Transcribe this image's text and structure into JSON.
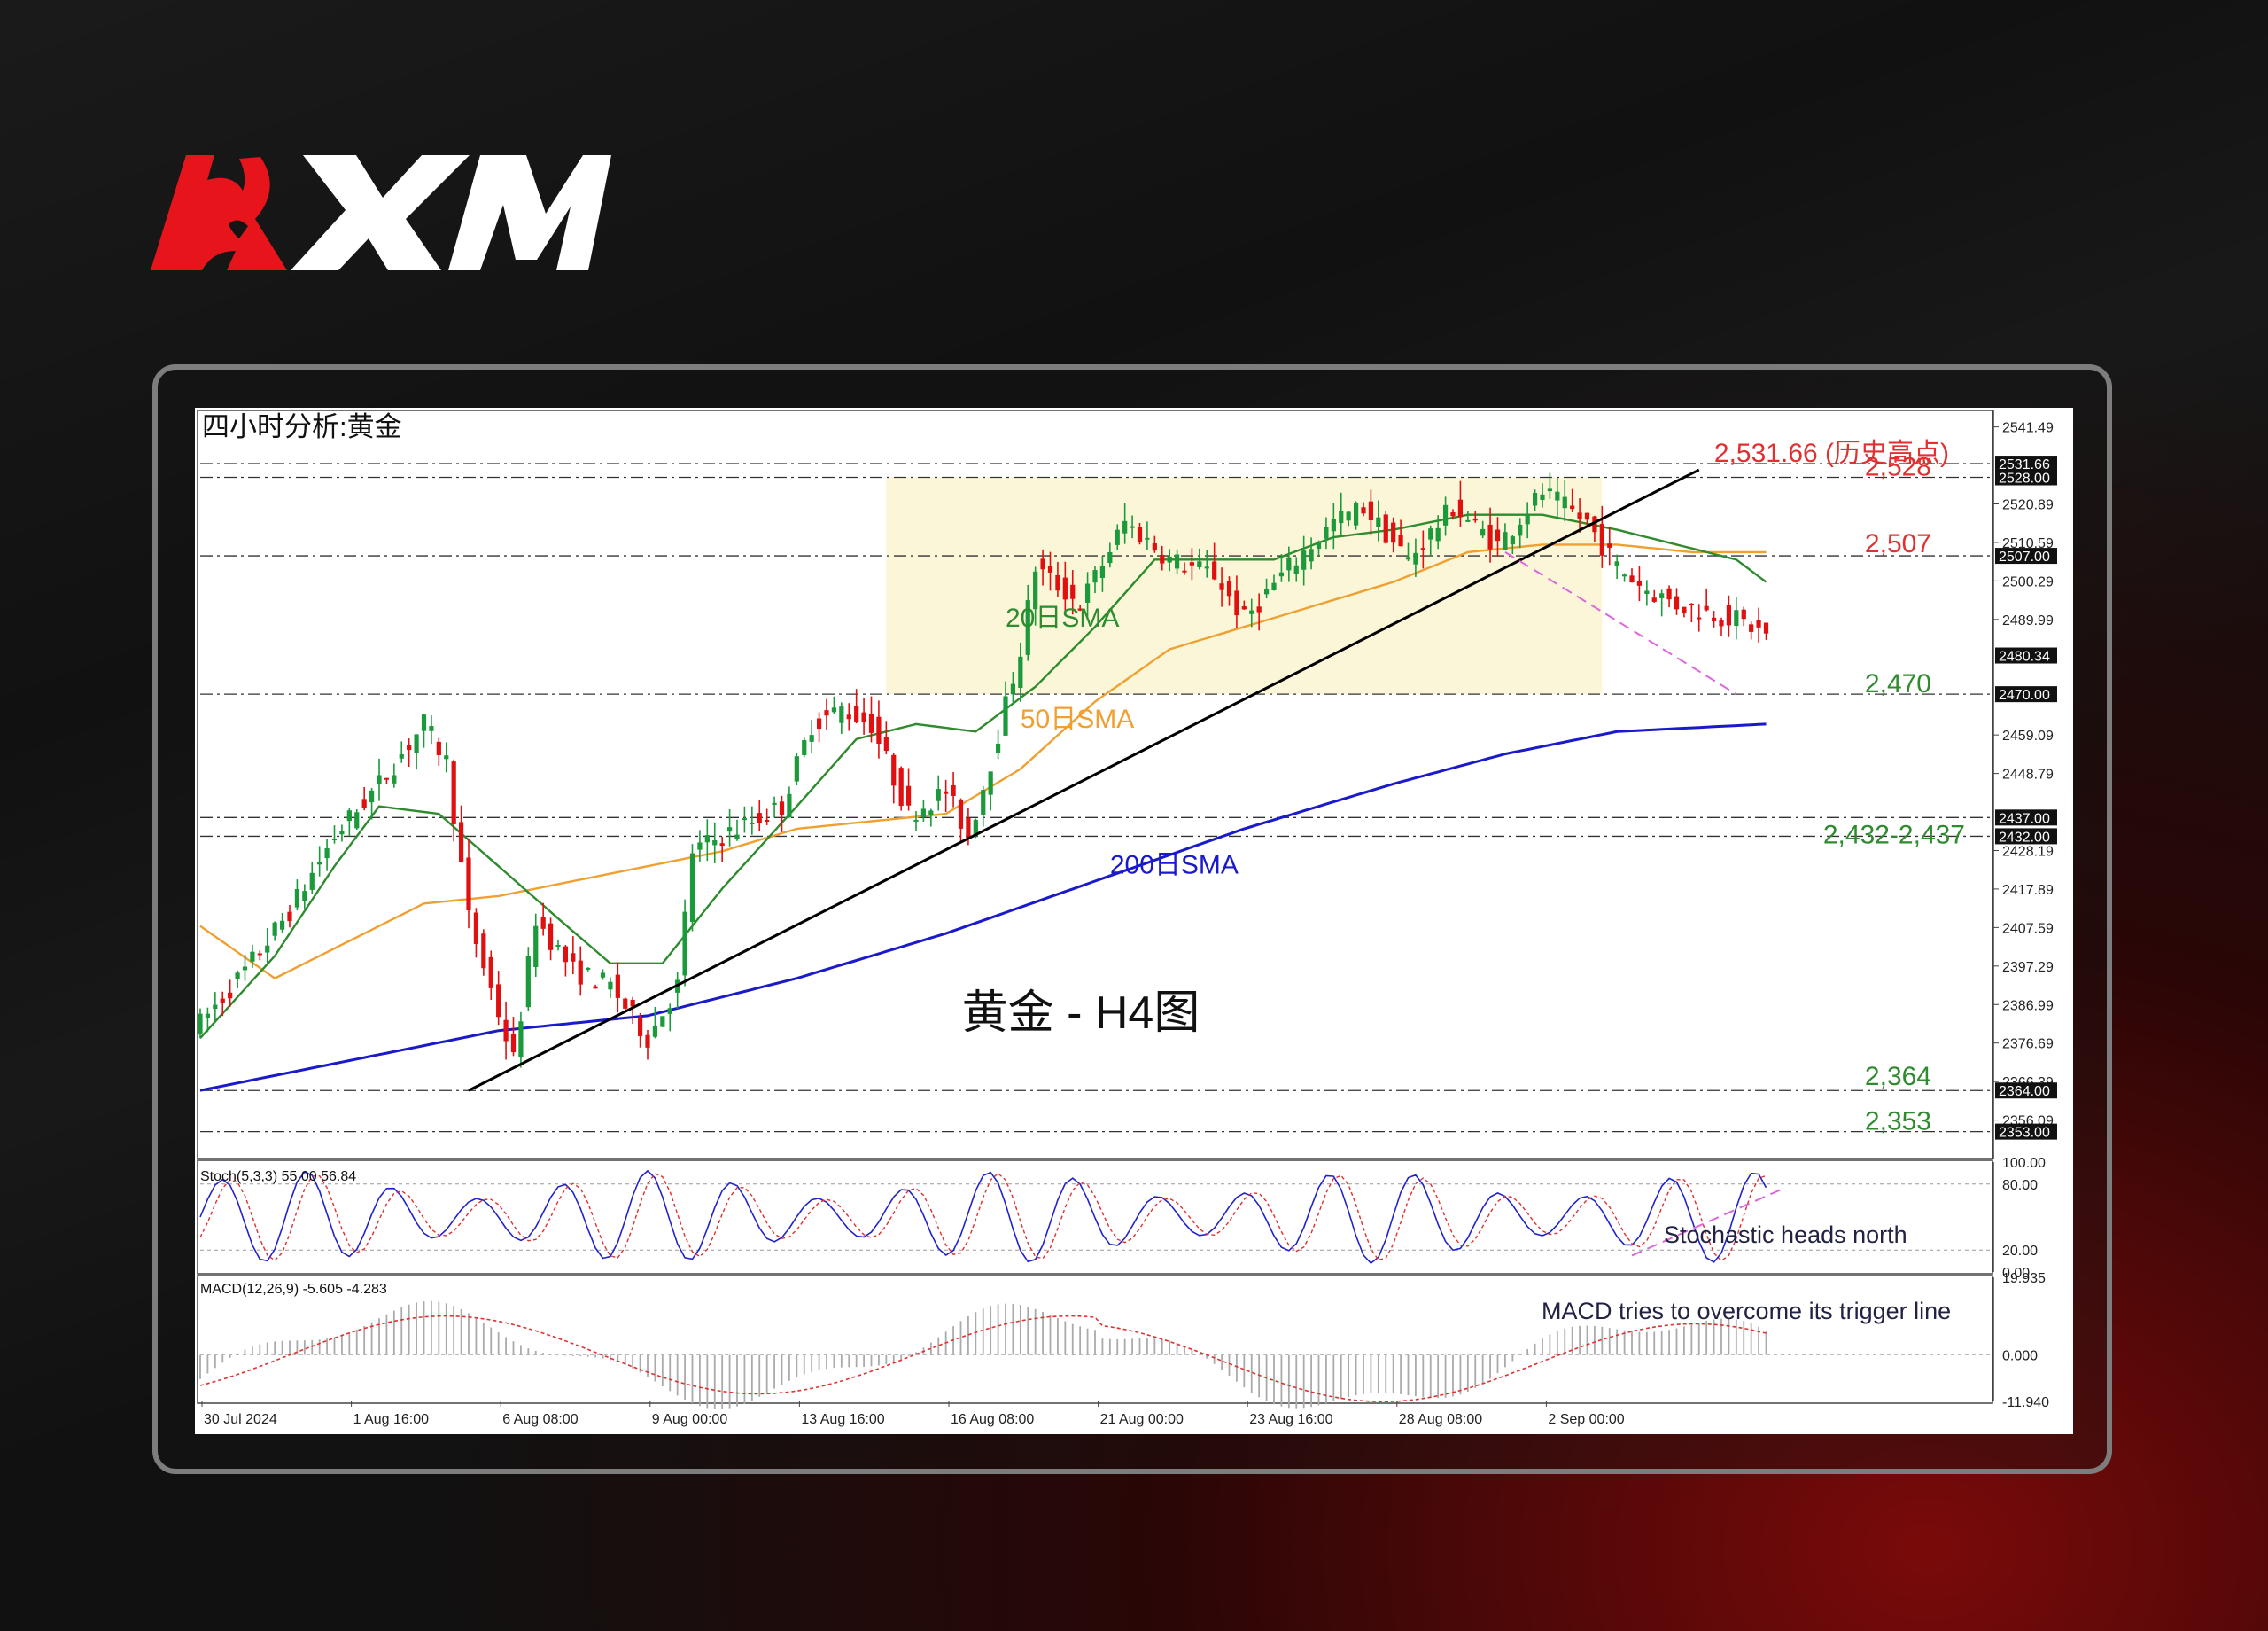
{
  "brand": {
    "name": "XM",
    "accent": "#e8141b"
  },
  "chart_data": {
    "type": "candlestick",
    "title": "四小时分析:黄金",
    "watermark": "黄金 - H4图",
    "ylim": [
      2345.8,
      2545.9
    ],
    "x_tick_labels": [
      "30 Jul 2024",
      "1 Aug 16:00",
      "6 Aug 08:00",
      "9 Aug 00:00",
      "13 Aug 16:00",
      "16 Aug 08:00",
      "21 Aug 00:00",
      "23 Aug 16:00",
      "28 Aug 08:00",
      "2 Sep 00:00"
    ],
    "y_tick_labels": [
      {
        "value": 2541.49,
        "label": "2541.49"
      },
      {
        "value": 2520.89,
        "label": "2520.89"
      },
      {
        "value": 2510.59,
        "label": "2510.59"
      },
      {
        "value": 2500.29,
        "label": "2500.29"
      },
      {
        "value": 2489.99,
        "label": "2489.99"
      },
      {
        "value": 2459.09,
        "label": "2459.09"
      },
      {
        "value": 2448.79,
        "label": "2448.79"
      },
      {
        "value": 2428.19,
        "label": "2428.19"
      },
      {
        "value": 2417.89,
        "label": "2417.89"
      },
      {
        "value": 2407.59,
        "label": "2407.59"
      },
      {
        "value": 2397.29,
        "label": "2397.29"
      },
      {
        "value": 2386.99,
        "label": "2386.99"
      },
      {
        "value": 2376.69,
        "label": "2376.69"
      },
      {
        "value": 2366.39,
        "label": "2366.39"
      },
      {
        "value": 2356.09,
        "label": "2356.09"
      }
    ],
    "price_boxes": [
      {
        "value": 2531.66,
        "label": "2531.66"
      },
      {
        "value": 2528.0,
        "label": "2528.00"
      },
      {
        "value": 2507.0,
        "label": "2507.00"
      },
      {
        "value": 2480.34,
        "label": "2480.34"
      },
      {
        "value": 2470.0,
        "label": "2470.00"
      },
      {
        "value": 2437.0,
        "label": "2437.00"
      },
      {
        "value": 2432.0,
        "label": "2432.00"
      },
      {
        "value": 2364.0,
        "label": "2364.00"
      },
      {
        "value": 2353.0,
        "label": "2353.00"
      }
    ],
    "levels": [
      {
        "value": 2531.66,
        "label": "2,531.66 (历史高点)",
        "color": "#e03030"
      },
      {
        "value": 2528,
        "label": "2,528",
        "color": "#e03030"
      },
      {
        "value": 2507,
        "label": "2,507",
        "color": "#e03030"
      },
      {
        "value": 2470,
        "label": "2,470",
        "color": "#2e8b2e"
      },
      {
        "value": 2437,
        "label": "",
        "color": "#2e8b2e"
      },
      {
        "value": 2432,
        "label": "2,432-2,437",
        "color": "#2e8b2e"
      },
      {
        "value": 2364,
        "label": "2,364",
        "color": "#2e8b2e"
      },
      {
        "value": 2353,
        "label": "2,353",
        "color": "#2e8b2e"
      }
    ],
    "range_box": {
      "x_from": 92,
      "x_to": 188,
      "y_from": 2470,
      "y_to": 2528
    },
    "series": [
      {
        "name": "20日SMA",
        "color": "#2e8b2e"
      },
      {
        "name": "50日SMA",
        "color": "#f0a030"
      },
      {
        "name": "200日SMA",
        "color": "#1a1acc"
      }
    ],
    "bull_color": "#1a9a3a",
    "bear_color": "#e01010",
    "anchors": [
      [
        0,
        2382
      ],
      [
        6,
        2396
      ],
      [
        12,
        2412
      ],
      [
        18,
        2432
      ],
      [
        24,
        2446
      ],
      [
        30,
        2462
      ],
      [
        33,
        2452
      ],
      [
        36,
        2410
      ],
      [
        42,
        2372
      ],
      [
        45,
        2410
      ],
      [
        50,
        2396
      ],
      [
        55,
        2392
      ],
      [
        60,
        2378
      ],
      [
        64,
        2392
      ],
      [
        66,
        2428
      ],
      [
        70,
        2432
      ],
      [
        74,
        2436
      ],
      [
        78,
        2440
      ],
      [
        82,
        2462
      ],
      [
        86,
        2466
      ],
      [
        90,
        2462
      ],
      [
        95,
        2438
      ],
      [
        100,
        2444
      ],
      [
        103,
        2432
      ],
      [
        106,
        2452
      ],
      [
        110,
        2482
      ],
      [
        112,
        2504
      ],
      [
        118,
        2494
      ],
      [
        124,
        2516
      ],
      [
        130,
        2506
      ],
      [
        136,
        2502
      ],
      [
        140,
        2490
      ],
      [
        146,
        2504
      ],
      [
        152,
        2516
      ],
      [
        156,
        2520
      ],
      [
        162,
        2506
      ],
      [
        168,
        2520
      ],
      [
        174,
        2510
      ],
      [
        180,
        2524
      ],
      [
        186,
        2516
      ],
      [
        190,
        2504
      ],
      [
        194,
        2498
      ],
      [
        198,
        2494
      ],
      [
        202,
        2492
      ],
      [
        206,
        2490
      ],
      [
        210,
        2486
      ]
    ],
    "sma20_anchors": [
      [
        0,
        2378
      ],
      [
        10,
        2400
      ],
      [
        18,
        2424
      ],
      [
        24,
        2440
      ],
      [
        32,
        2438
      ],
      [
        40,
        2424
      ],
      [
        48,
        2410
      ],
      [
        55,
        2398
      ],
      [
        62,
        2398
      ],
      [
        70,
        2418
      ],
      [
        80,
        2440
      ],
      [
        88,
        2458
      ],
      [
        96,
        2462
      ],
      [
        104,
        2460
      ],
      [
        112,
        2472
      ],
      [
        120,
        2488
      ],
      [
        128,
        2506
      ],
      [
        136,
        2506
      ],
      [
        144,
        2506
      ],
      [
        152,
        2512
      ],
      [
        160,
        2514
      ],
      [
        170,
        2518
      ],
      [
        180,
        2518
      ],
      [
        190,
        2514
      ],
      [
        198,
        2510
      ],
      [
        206,
        2506
      ],
      [
        210,
        2500
      ]
    ],
    "sma50_anchors": [
      [
        0,
        2408
      ],
      [
        10,
        2394
      ],
      [
        20,
        2404
      ],
      [
        30,
        2414
      ],
      [
        40,
        2416
      ],
      [
        50,
        2420
      ],
      [
        60,
        2424
      ],
      [
        70,
        2428
      ],
      [
        80,
        2434
      ],
      [
        90,
        2436
      ],
      [
        100,
        2438
      ],
      [
        110,
        2450
      ],
      [
        120,
        2468
      ],
      [
        130,
        2482
      ],
      [
        140,
        2488
      ],
      [
        150,
        2494
      ],
      [
        160,
        2500
      ],
      [
        170,
        2508
      ],
      [
        180,
        2510
      ],
      [
        190,
        2510
      ],
      [
        200,
        2508
      ],
      [
        210,
        2508
      ]
    ],
    "sma200_anchors": [
      [
        0,
        2364
      ],
      [
        20,
        2372
      ],
      [
        40,
        2380
      ],
      [
        60,
        2384
      ],
      [
        80,
        2394
      ],
      [
        100,
        2406
      ],
      [
        120,
        2420
      ],
      [
        140,
        2434
      ],
      [
        160,
        2446
      ],
      [
        175,
        2454
      ],
      [
        190,
        2460
      ],
      [
        210,
        2462
      ]
    ],
    "trendline": {
      "points": [
        [
          36,
          2364
        ],
        [
          201,
          2530
        ]
      ],
      "color": "#000000"
    },
    "down_channel": {
      "points": [
        [
          175,
          2508
        ],
        [
          206,
          2470
        ]
      ],
      "color": "#dd66dd"
    },
    "stoch": {
      "label": "Stoch(5,3,3) 55.00 56.84",
      "levels": [
        {
          "value": 100,
          "label": "100.00"
        },
        {
          "value": 80,
          "label": "80.00"
        },
        {
          "value": 20,
          "label": "20.00"
        },
        {
          "value": 0,
          "label": "0.00"
        }
      ],
      "annotation": "Stochastic heads north",
      "main_color": "#2222cc",
      "signal_color": "#e03030",
      "trend": {
        "points": [
          [
            192,
            15
          ],
          [
            212,
            75
          ]
        ],
        "color": "#dd66dd"
      }
    },
    "macd": {
      "label": "MACD(12,26,9) -5.605 -4.283",
      "ylim": [
        -11.94,
        19.935
      ],
      "levels": [
        {
          "value": 19.935,
          "label": "19.935"
        },
        {
          "value": 0,
          "label": "0.000"
        },
        {
          "value": -11.94,
          "label": "-11.940"
        }
      ],
      "annotation": "MACD tries to overcome its trigger line",
      "signal_color": "#e03030"
    },
    "annotations": [
      {
        "text": "20日SMA",
        "x": 108,
        "y": 2488,
        "color": "#2e8b2e"
      },
      {
        "text": "50日SMA",
        "x": 110,
        "y": 2461,
        "color": "#f0a030"
      },
      {
        "text": "200日SMA",
        "x": 122,
        "y": 2422,
        "color": "#1a1acc"
      }
    ]
  }
}
